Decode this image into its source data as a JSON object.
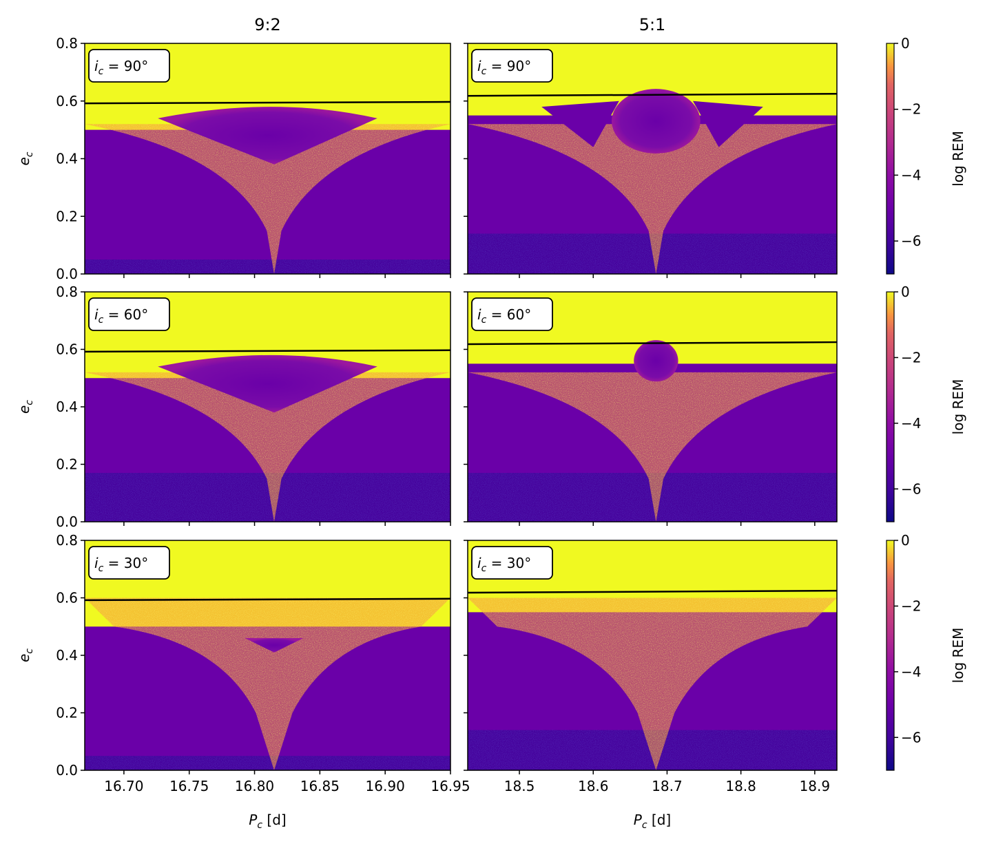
{
  "chart_data": {
    "type": "heatmap",
    "columns": [
      {
        "title": "9:2",
        "xlabel_main": "P",
        "xlabel_sub": "c",
        "xlabel_unit": "[d]",
        "xlim": [
          16.67,
          16.95
        ],
        "xticks": [
          {
            "value": 16.7,
            "label": "16.70"
          },
          {
            "value": 16.75,
            "label": "16.75"
          },
          {
            "value": 16.8,
            "label": "16.80"
          },
          {
            "value": 16.85,
            "label": "16.85"
          },
          {
            "value": 16.9,
            "label": "16.90"
          },
          {
            "value": 16.95,
            "label": "16.95"
          }
        ],
        "center": 16.815,
        "boundary_e": [
          0.592,
          0.597
        ]
      },
      {
        "title": "5:1",
        "xlabel_main": "P",
        "xlabel_sub": "c",
        "xlabel_unit": "[d]",
        "xlim": [
          18.43,
          18.93
        ],
        "xticks": [
          {
            "value": 18.5,
            "label": "18.5"
          },
          {
            "value": 18.6,
            "label": "18.6"
          },
          {
            "value": 18.7,
            "label": "18.7"
          },
          {
            "value": 18.8,
            "label": "18.8"
          },
          {
            "value": 18.9,
            "label": "18.9"
          }
        ],
        "center": 18.685,
        "boundary_e": [
          0.618,
          0.625
        ]
      }
    ],
    "rows": [
      {
        "inclination_label": "i",
        "inclination_sub": "c",
        "inclination_value": " = 90°"
      },
      {
        "inclination_label": "i",
        "inclination_sub": "c",
        "inclination_value": " = 60°"
      },
      {
        "inclination_label": "i",
        "inclination_sub": "c",
        "inclination_value": " = 30°"
      }
    ],
    "ylabel_main": "e",
    "ylabel_sub": "c",
    "ylim": [
      0.0,
      0.8
    ],
    "yticks": [
      {
        "value": 0.0,
        "label": "0.0"
      },
      {
        "value": 0.2,
        "label": "0.2"
      },
      {
        "value": 0.4,
        "label": "0.4"
      },
      {
        "value": 0.6,
        "label": "0.6"
      },
      {
        "value": 0.8,
        "label": "0.8"
      }
    ],
    "colorbar": {
      "label": "log REM",
      "range": [
        -7,
        0
      ],
      "ticks": [
        {
          "value": 0,
          "label": "0"
        },
        {
          "value": -2,
          "label": "−2"
        },
        {
          "value": -4,
          "label": "−4"
        },
        {
          "value": -6,
          "label": "−6"
        }
      ],
      "colormap": "plasma"
    },
    "colors": {
      "chaotic": "#f0f921",
      "stable": "#6a00a8",
      "very_stable": "#3b049a",
      "boundary_line": "#000000"
    }
  }
}
